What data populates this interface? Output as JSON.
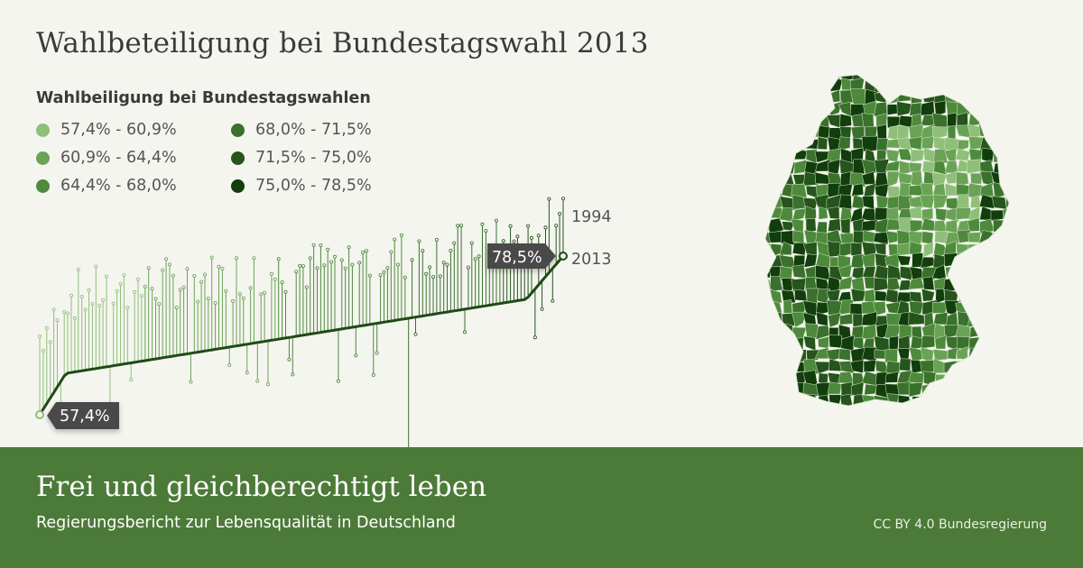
{
  "title": "Wahlbeteiligung bei Bundestagswahl 2013",
  "legend": {
    "title": "Wahlbeiligung bei Bundestagswahlen",
    "items": [
      {
        "label": "57,4% - 60,9%",
        "color": "#8fbf79"
      },
      {
        "label": "60,9% - 64,4%",
        "color": "#6aa356"
      },
      {
        "label": "64,4% - 68,0%",
        "color": "#4d8a3b"
      },
      {
        "label": "68,0% - 71,5%",
        "color": "#3a712c"
      },
      {
        "label": "71,5% - 75,0%",
        "color": "#25541c"
      },
      {
        "label": "75,0% - 78,5%",
        "color": "#123d0d"
      }
    ]
  },
  "chart_data": {
    "type": "line",
    "title": "",
    "series": [
      {
        "name": "1994"
      },
      {
        "name": "2013"
      }
    ],
    "min_label": "57,4%",
    "max_label": "78,5%",
    "y_range": [
      57.4,
      78.5
    ]
  },
  "footer": {
    "title": "Frei und gleichberechtigt leben",
    "subtitle": "Regierungsbericht zur Lebensqualität in Deutschland",
    "credit": "CC BY 4.0 Bundesregierung"
  },
  "colors": {
    "footer_bg": "#4c7a38",
    "page_bg": "#f5f5f0",
    "tag_bg": "#4a4a4a"
  }
}
